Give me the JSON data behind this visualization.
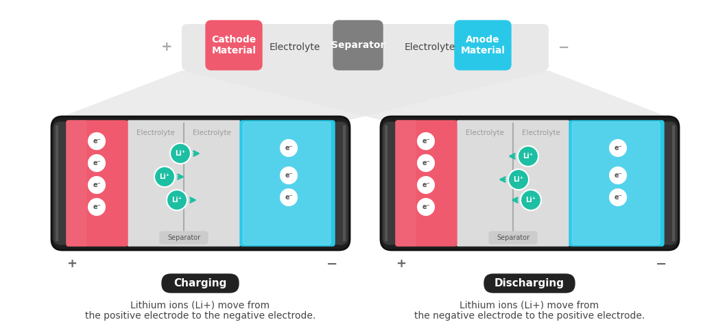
{
  "bg_color": "#ffffff",
  "cathode_color": "#f05a6e",
  "anode_color": "#29c8e8",
  "separator_color": "#7f7f7f",
  "teal_color": "#1dbfa3",
  "dark_gray": "#444444",
  "light_gray": "#d8d8d8",
  "med_gray": "#aaaaaa",
  "title_top": "Cathode\nMaterial",
  "title_electrolyte": "Electrolyte",
  "title_separator_top": "Separator",
  "title_anode": "Anode\nMaterial",
  "charging_label": "Charging",
  "discharging_label": "Discharging",
  "charging_desc1": "Lithium ions (Li+) move from",
  "charging_desc2": "the positive electrode to the negative electrode.",
  "discharging_desc1": "Lithium ions (Li+) move from",
  "discharging_desc2": "the negative electrode to the positive electrode.",
  "separator_bottom_label": "Separator",
  "plus_symbol": "+",
  "minus_symbol": "−",
  "electron_symbol": "e⁻",
  "li_symbol": "Li⁺"
}
